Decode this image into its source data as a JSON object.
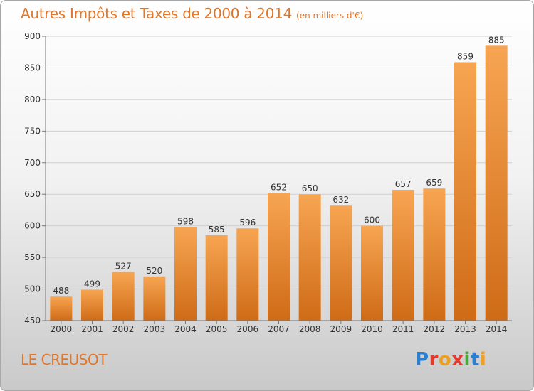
{
  "title": "Autres Impôts et Taxes de 2000 à 2014",
  "unit_note": "(en milliers d'€)",
  "commune": "LE CREUSOT",
  "brand": {
    "text": "Proxiti",
    "colors": [
      "#2a7fd0",
      "#e8382b",
      "#f0a020",
      "#e8382b",
      "#4aa83a",
      "#2a7fd0",
      "#f0a020"
    ]
  },
  "colors": {
    "accent": "#e0762a",
    "bar_light": "#f7a552",
    "bar_dark": "#cf6b17"
  },
  "chart_data": {
    "type": "bar",
    "title": "Autres Impôts et Taxes de 2000 à 2014",
    "subtitle": "(en milliers d'€)",
    "categories": [
      "2000",
      "2001",
      "2002",
      "2003",
      "2004",
      "2005",
      "2006",
      "2007",
      "2008",
      "2009",
      "2010",
      "2011",
      "2012",
      "2013",
      "2014"
    ],
    "values": [
      488,
      499,
      527,
      520,
      598,
      585,
      596,
      652,
      650,
      632,
      600,
      657,
      659,
      859,
      885
    ],
    "ylim": [
      450,
      900
    ],
    "yticks": [
      450,
      500,
      550,
      600,
      650,
      700,
      750,
      800,
      850,
      900
    ],
    "grid": true,
    "xlabel": "",
    "ylabel": ""
  }
}
